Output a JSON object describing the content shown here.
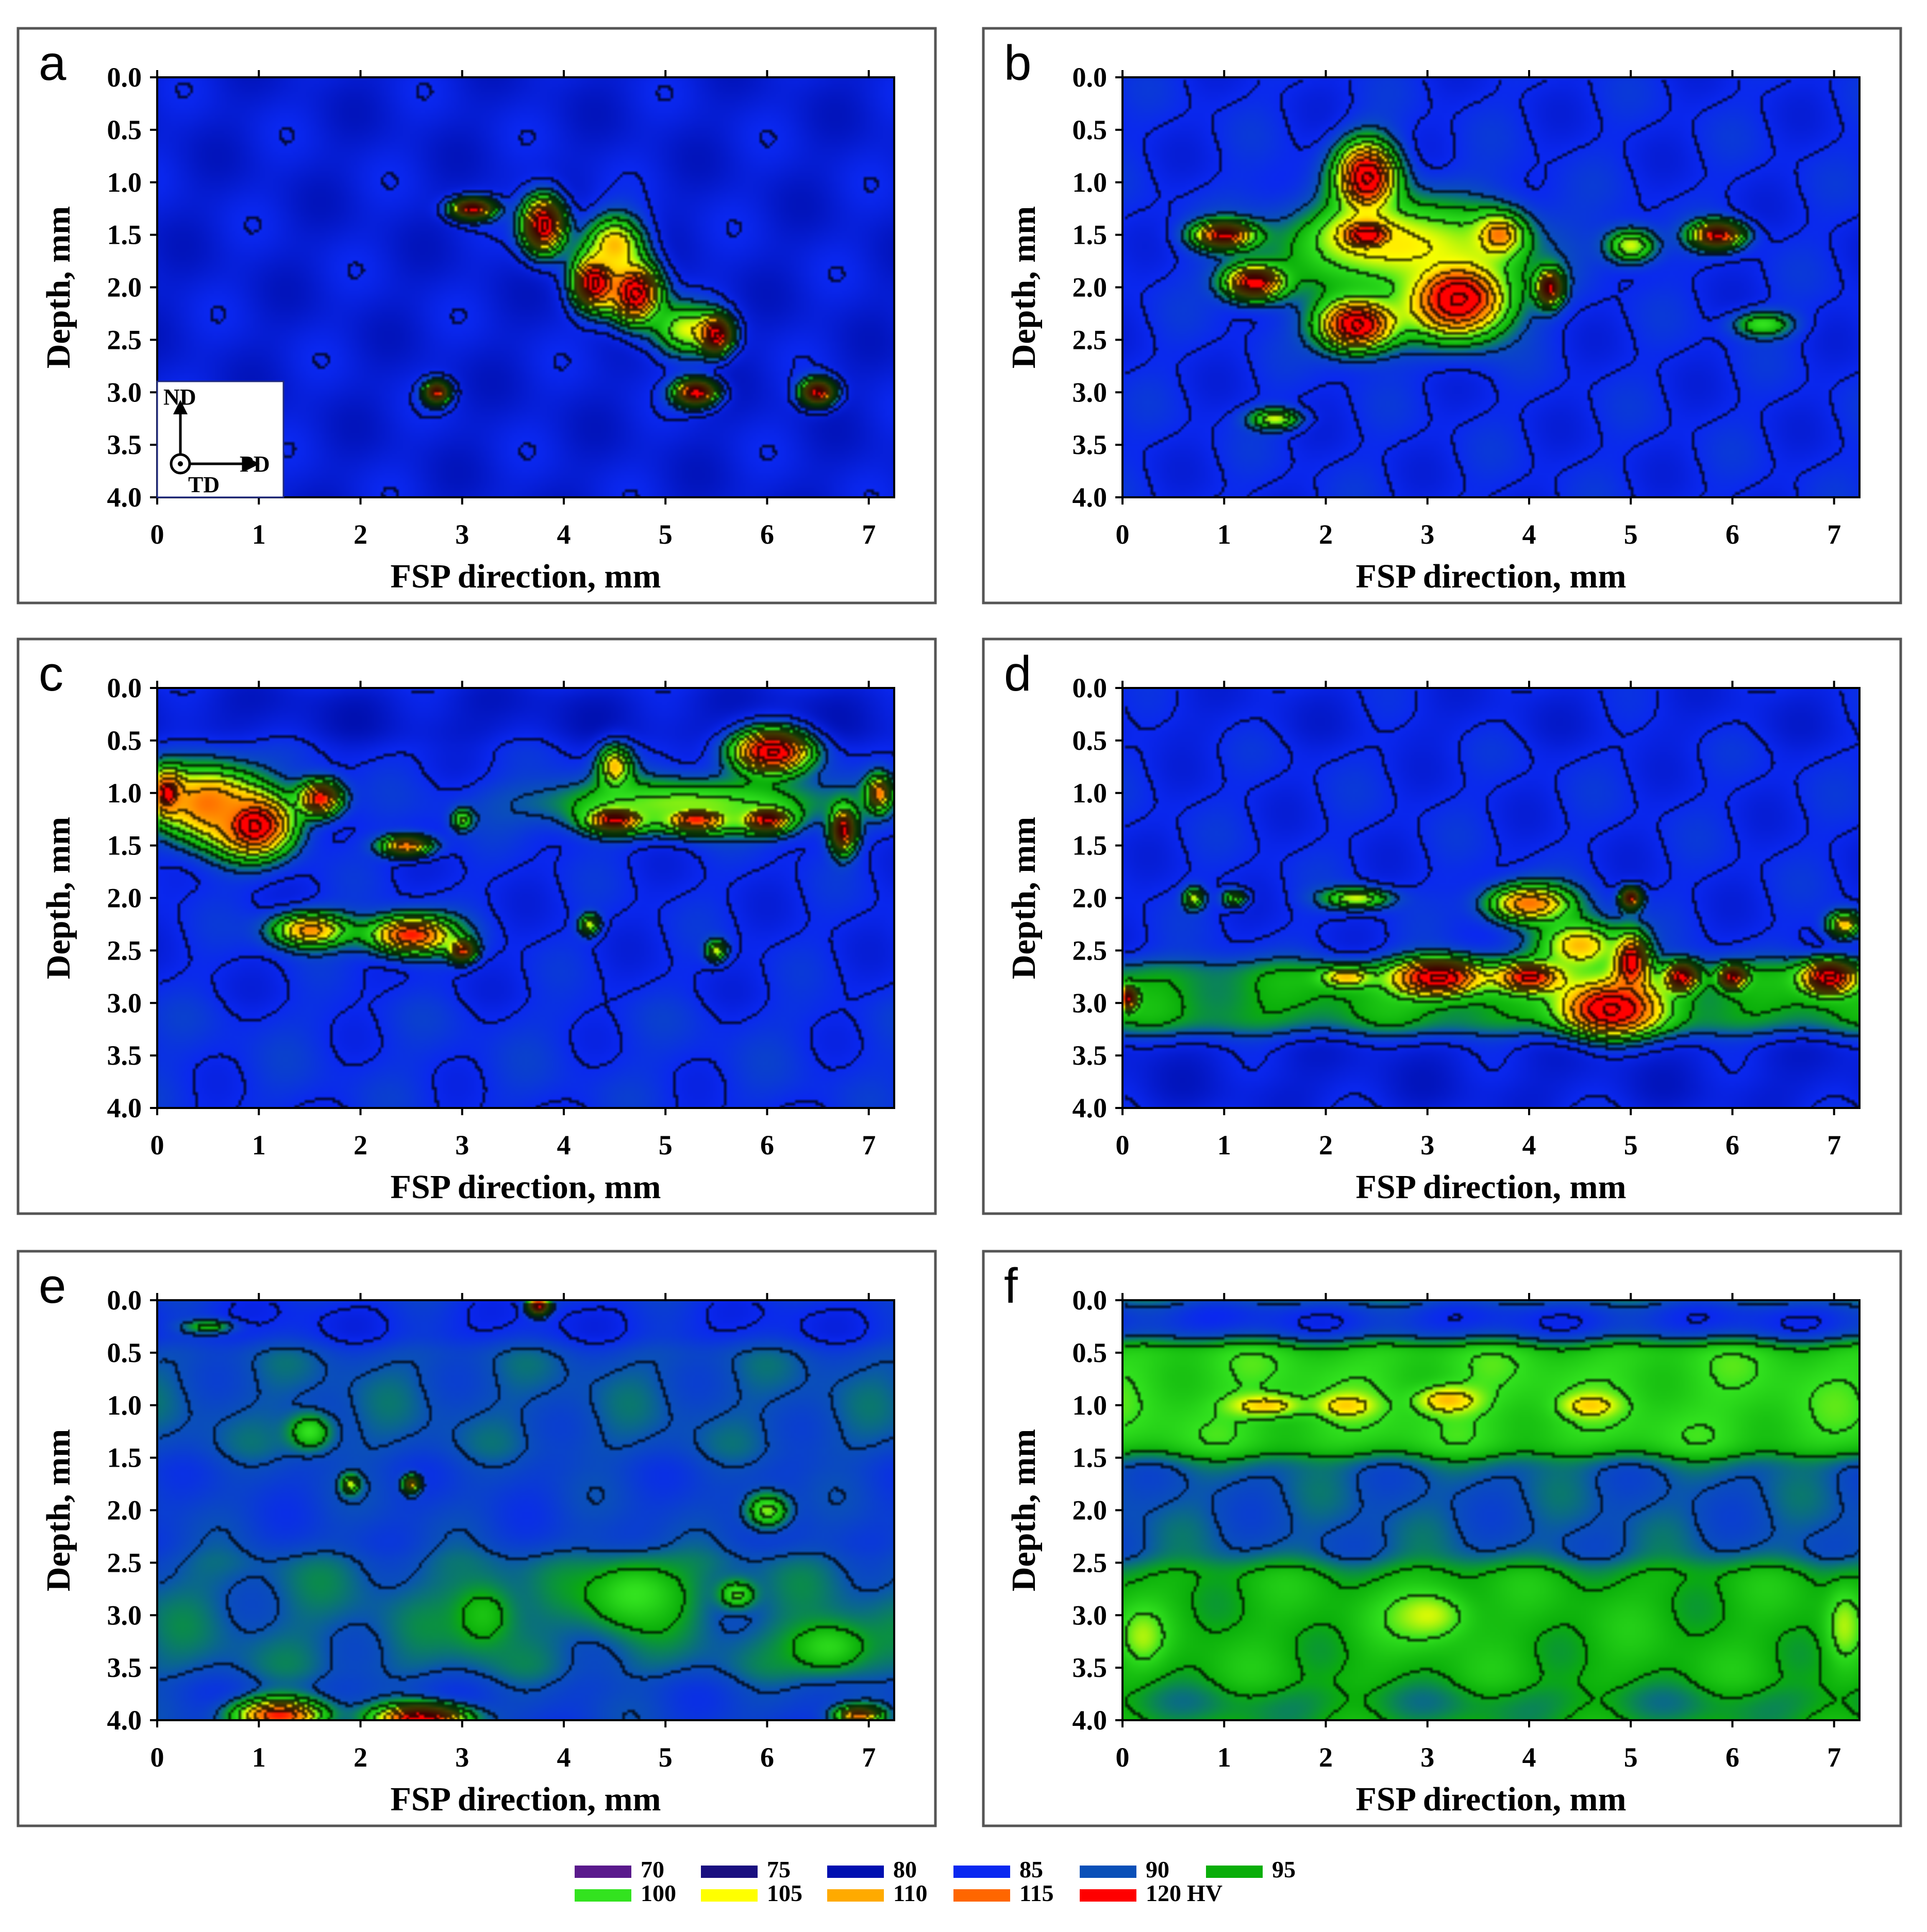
{
  "chart_data": [
    {
      "panel": "a",
      "type": "heatmap",
      "xlabel": "FSP direction, mm",
      "ylabel": "Depth, mm",
      "xlim": [
        0,
        7.25
      ],
      "ylim": [
        4.0,
        0.0
      ],
      "x_ticks": [
        "0",
        "1",
        "2",
        "3",
        "4",
        "5",
        "6",
        "7"
      ],
      "y_ticks": [
        "0.0",
        "0.5",
        "1.0",
        "1.5",
        "2.0",
        "2.5",
        "3.0",
        "3.5",
        "4.0"
      ],
      "base_hv": 83,
      "bands": [],
      "hotspots": [
        {
          "x": 3.1,
          "y": 1.25,
          "hv": 118,
          "rx": 0.25,
          "ry": 0.12
        },
        {
          "x": 3.8,
          "y": 1.4,
          "hv": 122,
          "rx": 0.25,
          "ry": 0.32
        },
        {
          "x": 4.3,
          "y": 1.95,
          "hv": 122,
          "rx": 0.25,
          "ry": 0.3
        },
        {
          "x": 4.7,
          "y": 2.05,
          "hv": 122,
          "rx": 0.3,
          "ry": 0.35
        },
        {
          "x": 5.2,
          "y": 2.4,
          "hv": 100,
          "rx": 0.4,
          "ry": 0.3
        },
        {
          "x": 5.5,
          "y": 2.45,
          "hv": 122,
          "rx": 0.18,
          "ry": 0.2
        },
        {
          "x": 5.3,
          "y": 3.0,
          "hv": 120,
          "rx": 0.25,
          "ry": 0.15
        },
        {
          "x": 2.75,
          "y": 3.0,
          "hv": 115,
          "rx": 0.15,
          "ry": 0.13
        },
        {
          "x": 6.5,
          "y": 3.0,
          "hv": 118,
          "rx": 0.2,
          "ry": 0.15
        },
        {
          "x": 4.5,
          "y": 1.6,
          "hv": 105,
          "rx": 0.35,
          "ry": 0.35
        }
      ],
      "orientation_inset": {
        "labels": [
          "ND",
          "PD",
          "TD"
        ]
      }
    },
    {
      "panel": "b",
      "type": "heatmap",
      "xlabel": "FSP direction, mm",
      "ylabel": "Depth, mm",
      "xlim": [
        0,
        7.25
      ],
      "ylim": [
        4.0,
        0.0
      ],
      "x_ticks": [
        "0",
        "1",
        "2",
        "3",
        "4",
        "5",
        "6",
        "7"
      ],
      "y_ticks": [
        "0.0",
        "0.5",
        "1.0",
        "1.5",
        "2.0",
        "2.5",
        "3.0",
        "3.5",
        "4.0"
      ],
      "base_hv": 85,
      "bands": [],
      "hotspots": [
        {
          "x": 2.4,
          "y": 0.95,
          "hv": 122,
          "rx": 0.35,
          "ry": 0.4
        },
        {
          "x": 2.4,
          "y": 1.5,
          "hv": 120,
          "rx": 0.4,
          "ry": 0.2
        },
        {
          "x": 1.0,
          "y": 1.5,
          "hv": 118,
          "rx": 0.35,
          "ry": 0.15
        },
        {
          "x": 1.3,
          "y": 1.95,
          "hv": 120,
          "rx": 0.35,
          "ry": 0.2
        },
        {
          "x": 2.3,
          "y": 2.35,
          "hv": 122,
          "rx": 0.45,
          "ry": 0.3
        },
        {
          "x": 3.3,
          "y": 2.1,
          "hv": 122,
          "rx": 0.6,
          "ry": 0.45
        },
        {
          "x": 4.2,
          "y": 2.0,
          "hv": 118,
          "rx": 0.15,
          "ry": 0.2
        },
        {
          "x": 3.7,
          "y": 1.5,
          "hv": 110,
          "rx": 0.3,
          "ry": 0.25
        },
        {
          "x": 5.0,
          "y": 1.6,
          "hv": 100,
          "rx": 0.3,
          "ry": 0.2
        },
        {
          "x": 5.85,
          "y": 1.5,
          "hv": 118,
          "rx": 0.3,
          "ry": 0.15
        },
        {
          "x": 6.3,
          "y": 2.35,
          "hv": 96,
          "rx": 0.35,
          "ry": 0.15
        },
        {
          "x": 1.5,
          "y": 3.25,
          "hv": 100,
          "rx": 0.3,
          "ry": 0.12
        },
        {
          "x": 2.7,
          "y": 1.6,
          "hv": 102,
          "rx": 1.4,
          "ry": 0.55
        }
      ]
    },
    {
      "panel": "c",
      "type": "heatmap",
      "xlabel": "FSP direction, mm",
      "ylabel": "Depth, mm",
      "xlim": [
        0,
        7.25
      ],
      "ylim": [
        4.0,
        0.0
      ],
      "x_ticks": [
        "0",
        "1",
        "2",
        "3",
        "4",
        "5",
        "6",
        "7"
      ],
      "y_ticks": [
        "0.0",
        "0.5",
        "1.0",
        "1.5",
        "2.0",
        "2.5",
        "3.0",
        "3.5",
        "4.0"
      ],
      "base_hv": 85,
      "bands": [
        {
          "y0": 0.0,
          "y1": 0.5,
          "hv": 82
        },
        {
          "y0": 3.0,
          "y1": 4.0,
          "hv": 86
        }
      ],
      "hotspots": [
        {
          "x": 0.1,
          "y": 1.0,
          "hv": 120,
          "rx": 0.2,
          "ry": 0.25
        },
        {
          "x": 0.95,
          "y": 1.3,
          "hv": 122,
          "rx": 0.45,
          "ry": 0.35
        },
        {
          "x": 1.6,
          "y": 1.05,
          "hv": 116,
          "rx": 0.25,
          "ry": 0.2
        },
        {
          "x": 0.5,
          "y": 1.1,
          "hv": 110,
          "rx": 0.6,
          "ry": 0.45
        },
        {
          "x": 2.45,
          "y": 1.5,
          "hv": 110,
          "rx": 0.3,
          "ry": 0.12
        },
        {
          "x": 1.5,
          "y": 2.3,
          "hv": 108,
          "rx": 0.45,
          "ry": 0.2
        },
        {
          "x": 2.5,
          "y": 2.35,
          "hv": 115,
          "rx": 0.5,
          "ry": 0.22
        },
        {
          "x": 3.0,
          "y": 2.5,
          "hv": 114,
          "rx": 0.15,
          "ry": 0.12
        },
        {
          "x": 4.5,
          "y": 1.25,
          "hv": 118,
          "rx": 0.35,
          "ry": 0.15
        },
        {
          "x": 5.3,
          "y": 1.25,
          "hv": 115,
          "rx": 0.4,
          "ry": 0.15
        },
        {
          "x": 6.0,
          "y": 1.25,
          "hv": 118,
          "rx": 0.3,
          "ry": 0.15
        },
        {
          "x": 6.05,
          "y": 0.6,
          "hv": 122,
          "rx": 0.45,
          "ry": 0.25
        },
        {
          "x": 6.75,
          "y": 1.35,
          "hv": 118,
          "rx": 0.15,
          "ry": 0.25
        },
        {
          "x": 7.1,
          "y": 1.0,
          "hv": 110,
          "rx": 0.15,
          "ry": 0.2
        },
        {
          "x": 4.5,
          "y": 0.75,
          "hv": 105,
          "rx": 0.2,
          "ry": 0.25
        },
        {
          "x": 5.2,
          "y": 1.1,
          "hv": 98,
          "rx": 1.8,
          "ry": 0.3
        },
        {
          "x": 4.25,
          "y": 2.25,
          "hv": 100,
          "rx": 0.12,
          "ry": 0.12
        },
        {
          "x": 5.5,
          "y": 2.5,
          "hv": 100,
          "rx": 0.12,
          "ry": 0.12
        },
        {
          "x": 3.0,
          "y": 1.25,
          "hv": 98,
          "rx": 0.12,
          "ry": 0.12
        }
      ]
    },
    {
      "panel": "d",
      "type": "heatmap",
      "xlabel": "FSP direction, mm",
      "ylabel": "Depth, mm",
      "xlim": [
        0,
        7.25
      ],
      "ylim": [
        4.0,
        0.0
      ],
      "x_ticks": [
        "0",
        "1",
        "2",
        "3",
        "4",
        "5",
        "6",
        "7"
      ],
      "y_ticks": [
        "0.0",
        "0.5",
        "1.0",
        "1.5",
        "2.0",
        "2.5",
        "3.0",
        "3.5",
        "4.0"
      ],
      "base_hv": 85,
      "bands": [
        {
          "y0": 0.0,
          "y1": 0.5,
          "hv": 84
        },
        {
          "y0": 2.6,
          "y1": 3.3,
          "hv": 95
        },
        {
          "y0": 3.4,
          "y1": 4.0,
          "hv": 83
        }
      ],
      "hotspots": [
        {
          "x": 0.7,
          "y": 2.0,
          "hv": 100,
          "rx": 0.12,
          "ry": 0.12
        },
        {
          "x": 1.1,
          "y": 2.0,
          "hv": 97,
          "rx": 0.15,
          "ry": 0.1
        },
        {
          "x": 2.3,
          "y": 2.0,
          "hv": 100,
          "rx": 0.4,
          "ry": 0.12
        },
        {
          "x": 4.0,
          "y": 2.05,
          "hv": 110,
          "rx": 0.5,
          "ry": 0.22
        },
        {
          "x": 5.0,
          "y": 2.0,
          "hv": 115,
          "rx": 0.12,
          "ry": 0.12
        },
        {
          "x": 7.1,
          "y": 2.25,
          "hv": 105,
          "rx": 0.2,
          "ry": 0.15
        },
        {
          "x": 3.1,
          "y": 2.75,
          "hv": 122,
          "rx": 0.5,
          "ry": 0.2
        },
        {
          "x": 4.0,
          "y": 2.75,
          "hv": 118,
          "rx": 0.35,
          "ry": 0.15
        },
        {
          "x": 4.8,
          "y": 3.05,
          "hv": 122,
          "rx": 0.55,
          "ry": 0.3
        },
        {
          "x": 5.0,
          "y": 2.6,
          "hv": 120,
          "rx": 0.2,
          "ry": 0.3
        },
        {
          "x": 5.5,
          "y": 2.75,
          "hv": 120,
          "rx": 0.18,
          "ry": 0.15
        },
        {
          "x": 6.0,
          "y": 2.75,
          "hv": 118,
          "rx": 0.15,
          "ry": 0.12
        },
        {
          "x": 6.95,
          "y": 2.75,
          "hv": 122,
          "rx": 0.3,
          "ry": 0.18
        },
        {
          "x": 0.05,
          "y": 2.95,
          "hv": 118,
          "rx": 0.1,
          "ry": 0.12
        },
        {
          "x": 2.2,
          "y": 2.75,
          "hv": 105,
          "rx": 0.3,
          "ry": 0.12
        },
        {
          "x": 4.5,
          "y": 2.45,
          "hv": 105,
          "rx": 0.5,
          "ry": 0.3
        }
      ]
    },
    {
      "panel": "e",
      "type": "heatmap",
      "xlabel": "FSP direction, mm",
      "ylabel": "Depth, mm",
      "xlim": [
        0,
        7.25
      ],
      "ylim": [
        4.0,
        0.0
      ],
      "x_ticks": [
        "0",
        "1",
        "2",
        "3",
        "4",
        "5",
        "6",
        "7"
      ],
      "y_ticks": [
        "0.0",
        "0.5",
        "1.0",
        "1.5",
        "2.0",
        "2.5",
        "3.0",
        "3.5",
        "4.0"
      ],
      "base_hv": 88,
      "bands": [
        {
          "y0": 0.0,
          "y1": 0.45,
          "hv": 85
        },
        {
          "y0": 0.45,
          "y1": 1.5,
          "hv": 90
        },
        {
          "y0": 2.4,
          "y1": 3.6,
          "hv": 91
        }
      ],
      "hotspots": [
        {
          "x": 3.75,
          "y": 0.05,
          "hv": 120,
          "rx": 0.12,
          "ry": 0.1
        },
        {
          "x": 0.5,
          "y": 0.25,
          "hv": 93,
          "rx": 0.3,
          "ry": 0.08
        },
        {
          "x": 1.5,
          "y": 1.25,
          "hv": 96,
          "rx": 0.25,
          "ry": 0.2
        },
        {
          "x": 1.9,
          "y": 1.75,
          "hv": 100,
          "rx": 0.1,
          "ry": 0.1
        },
        {
          "x": 2.5,
          "y": 1.75,
          "hv": 105,
          "rx": 0.1,
          "ry": 0.1
        },
        {
          "x": 6.0,
          "y": 2.0,
          "hv": 98,
          "rx": 0.25,
          "ry": 0.2
        },
        {
          "x": 4.7,
          "y": 2.8,
          "hv": 96,
          "rx": 0.6,
          "ry": 0.4
        },
        {
          "x": 5.7,
          "y": 2.8,
          "hv": 97,
          "rx": 0.2,
          "ry": 0.15
        },
        {
          "x": 6.6,
          "y": 3.3,
          "hv": 95,
          "rx": 0.5,
          "ry": 0.3
        },
        {
          "x": 1.2,
          "y": 3.95,
          "hv": 115,
          "rx": 0.5,
          "ry": 0.18
        },
        {
          "x": 2.6,
          "y": 3.98,
          "hv": 120,
          "rx": 0.5,
          "ry": 0.15
        },
        {
          "x": 6.9,
          "y": 3.95,
          "hv": 110,
          "rx": 0.25,
          "ry": 0.1
        },
        {
          "x": 3.2,
          "y": 3.0,
          "hv": 93,
          "rx": 0.4,
          "ry": 0.4
        }
      ]
    },
    {
      "panel": "f",
      "type": "heatmap",
      "xlabel": "FSP direction, mm",
      "ylabel": "Depth, mm",
      "xlim": [
        0,
        7.25
      ],
      "ylim": [
        4.0,
        0.0
      ],
      "x_ticks": [
        "0",
        "1",
        "2",
        "3",
        "4",
        "5",
        "6",
        "7"
      ],
      "y_ticks": [
        "0.0",
        "0.5",
        "1.0",
        "1.5",
        "2.0",
        "2.5",
        "3.0",
        "3.5",
        "4.0"
      ],
      "base_hv": 96,
      "bands": [
        {
          "y0": 0.0,
          "y1": 0.42,
          "hv": 85
        },
        {
          "y0": 0.42,
          "y1": 1.5,
          "hv": 99
        },
        {
          "y0": 1.5,
          "y1": 2.5,
          "hv": 90
        },
        {
          "y0": 3.7,
          "y1": 4.0,
          "hv": 93
        }
      ],
      "hotspots": [
        {
          "x": 1.4,
          "y": 1.0,
          "hv": 104,
          "rx": 0.4,
          "ry": 0.12
        },
        {
          "x": 2.2,
          "y": 1.0,
          "hv": 104,
          "rx": 0.3,
          "ry": 0.12
        },
        {
          "x": 3.2,
          "y": 0.95,
          "hv": 105,
          "rx": 0.35,
          "ry": 0.15
        },
        {
          "x": 4.6,
          "y": 1.0,
          "hv": 104,
          "rx": 0.3,
          "ry": 0.12
        },
        {
          "x": 3.6,
          "y": 0.55,
          "hv": 85,
          "rx": 0.15,
          "ry": 0.2
        },
        {
          "x": 0.2,
          "y": 3.2,
          "hv": 99,
          "rx": 0.25,
          "ry": 0.3
        },
        {
          "x": 7.1,
          "y": 3.1,
          "hv": 99,
          "rx": 0.2,
          "ry": 0.4
        },
        {
          "x": 3.0,
          "y": 3.0,
          "hv": 100,
          "rx": 0.5,
          "ry": 0.3
        }
      ]
    }
  ],
  "legend": {
    "items": [
      {
        "label": "70",
        "color": "#5a1a8c"
      },
      {
        "label": "75",
        "color": "#1a1080"
      },
      {
        "label": "80",
        "color": "#0010b0"
      },
      {
        "label": "85",
        "color": "#0a28f0"
      },
      {
        "label": "90",
        "color": "#0a50b8"
      },
      {
        "label": "95",
        "color": "#0aae0a"
      },
      {
        "label": "100",
        "color": "#33e31f"
      },
      {
        "label": "105",
        "color": "#ffff00"
      },
      {
        "label": "110",
        "color": "#ffaa00"
      },
      {
        "label": "115",
        "color": "#ff6600"
      },
      {
        "label": "120",
        "color": "#ff0000"
      }
    ],
    "unit": "HV"
  }
}
